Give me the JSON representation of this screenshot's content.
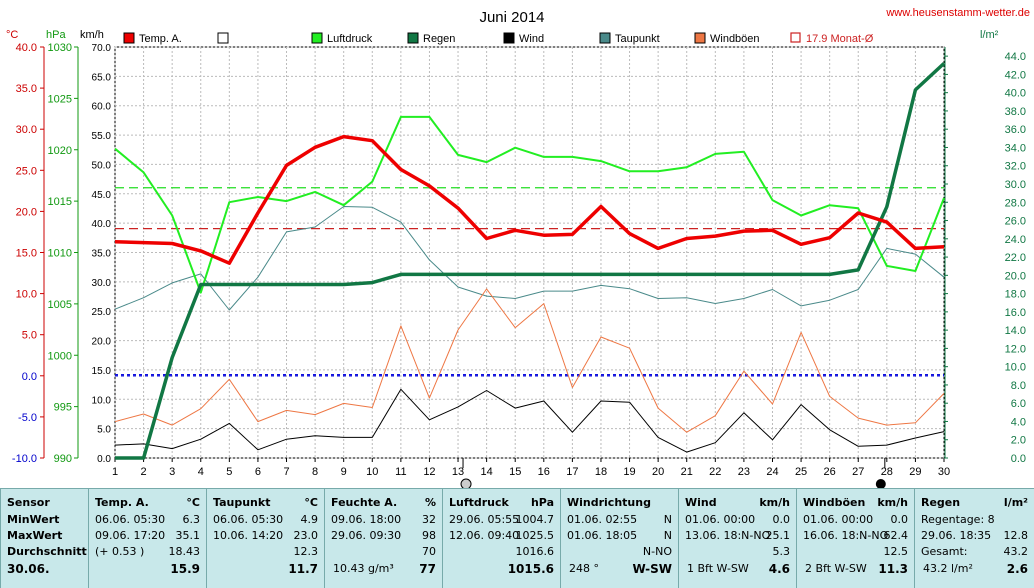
{
  "chart_data": {
    "type": "line",
    "title": "Juni 2014",
    "website": "www.heusenstamm-wetter.de",
    "x": [
      1,
      2,
      3,
      4,
      5,
      6,
      7,
      8,
      9,
      10,
      11,
      12,
      13,
      14,
      15,
      16,
      17,
      18,
      19,
      20,
      21,
      22,
      23,
      24,
      25,
      26,
      27,
      28,
      29,
      30
    ],
    "xlim": [
      1,
      30
    ],
    "axes": {
      "temp": {
        "unit": "°C",
        "min": -10,
        "max": 40,
        "ticks": [
          "40.0",
          "35.0",
          "30.0",
          "25.0",
          "20.0",
          "15.0",
          "10.0",
          "5.0",
          "0.0",
          "-5.0",
          "-10.0"
        ]
      },
      "pressure": {
        "unit": "hPa",
        "min": 990,
        "max": 1030,
        "ticks": [
          "1030",
          "1025",
          "1020",
          "1015",
          "1010",
          "1005",
          "1000",
          "995",
          "990"
        ]
      },
      "wind": {
        "unit": "km/h",
        "min": 0,
        "max": 70,
        "ticks": [
          "70.0",
          "65.0",
          "60.0",
          "55.0",
          "50.0",
          "45.0",
          "40.0",
          "35.0",
          "30.0",
          "25.0",
          "20.0",
          "15.0",
          "10.0",
          "5.0",
          "0.0"
        ]
      },
      "rain": {
        "unit": "l/m²",
        "min": 0,
        "max": 45,
        "ticks": [
          "44.0",
          "42.0",
          "40.0",
          "38.0",
          "36.0",
          "34.0",
          "32.0",
          "30.0",
          "28.0",
          "26.0",
          "24.0",
          "22.0",
          "20.0",
          "18.0",
          "16.0",
          "14.0",
          "12.0",
          "10.0",
          "8.0",
          "6.0",
          "4.0",
          "2.0",
          "0.0"
        ]
      }
    },
    "legend": [
      {
        "name": "Temp. A.",
        "color": "#ee0000",
        "style": "fill"
      },
      {
        "name": "",
        "color": "#ffffff",
        "style": "fill"
      },
      {
        "name": "Luftdruck",
        "color": "#22ee22",
        "style": "fill"
      },
      {
        "name": "Regen",
        "color": "#117744",
        "style": "fill"
      },
      {
        "name": "Wind",
        "color": "#000000",
        "style": "fill"
      },
      {
        "name": "Taupunkt",
        "color": "#4a8a8a",
        "style": "fill"
      },
      {
        "name": "Windböen",
        "color": "#ee7744",
        "style": "fill"
      },
      {
        "name": "17.9 Monat-Ø",
        "color": "#cc2222",
        "style": "outline"
      }
    ],
    "series": [
      {
        "name": "Temp. A.",
        "axis": "temp",
        "color": "#ee0000",
        "width": 3.5,
        "values": [
          16.3,
          16.2,
          16.1,
          15.2,
          13.7,
          19.8,
          25.6,
          27.8,
          29.1,
          28.6,
          25.1,
          23.1,
          20.4,
          16.7,
          17.7,
          17.1,
          17.2,
          20.6,
          17.3,
          15.5,
          16.7,
          17.0,
          17.6,
          17.7,
          16.0,
          16.8,
          19.8,
          18.7,
          15.5,
          15.7
        ]
      },
      {
        "name": "Luftdruck",
        "axis": "pressure",
        "color": "#22ee22",
        "width": 2,
        "values": [
          1020.1,
          1017.8,
          1013.6,
          1006.1,
          1014.9,
          1015.4,
          1015.0,
          1015.9,
          1014.6,
          1016.9,
          1023.2,
          1023.2,
          1019.5,
          1018.8,
          1020.2,
          1019.3,
          1019.3,
          1018.9,
          1017.9,
          1017.9,
          1018.3,
          1019.6,
          1019.8,
          1015.1,
          1013.6,
          1014.6,
          1014.3,
          1008.7,
          1008.2,
          1015.3
        ]
      },
      {
        "name": "Regen",
        "axis": "rain",
        "color": "#117744",
        "width": 3.5,
        "values": [
          0,
          0,
          11,
          19,
          19,
          19,
          19,
          19,
          19,
          19.2,
          20.1,
          20.1,
          20.1,
          20.1,
          20.1,
          20.1,
          20.1,
          20.1,
          20.1,
          20.1,
          20.1,
          20.1,
          20.1,
          20.1,
          20.1,
          20.1,
          20.6,
          27.5,
          40.3,
          43.2
        ]
      },
      {
        "name": "Wind",
        "axis": "wind",
        "color": "#000000",
        "width": 1,
        "values": [
          2.2,
          2.4,
          1.6,
          3.2,
          5.9,
          1.4,
          3.2,
          3.8,
          3.5,
          3.5,
          11.7,
          6.5,
          8.7,
          11.5,
          8.5,
          9.7,
          4.4,
          9.7,
          9.5,
          3.5,
          1.0,
          2.6,
          7.7,
          3.1,
          9.1,
          4.8,
          2.0,
          2.2,
          3.4,
          4.5
        ]
      },
      {
        "name": "Taupunkt",
        "axis": "temp",
        "color": "#4a8a8a",
        "width": 1,
        "values": [
          8.1,
          9.5,
          11.3,
          12.4,
          8.0,
          12.0,
          17.5,
          18.1,
          20.6,
          20.5,
          18.7,
          14.1,
          10.8,
          9.7,
          9.4,
          10.3,
          10.3,
          11.0,
          10.6,
          9.4,
          9.5,
          8.8,
          9.4,
          10.5,
          8.5,
          9.2,
          10.5,
          15.5,
          14.8,
          12.0
        ]
      },
      {
        "name": "Windböen",
        "axis": "wind",
        "color": "#ee7744",
        "width": 1,
        "values": [
          6.2,
          7.5,
          5.6,
          8.4,
          13.4,
          6.2,
          8.1,
          7.4,
          9.3,
          8.6,
          22.5,
          10.2,
          21.8,
          28.8,
          22.2,
          26.3,
          12.0,
          20.6,
          18.7,
          8.5,
          4.4,
          7.2,
          14.8,
          9.2,
          21.4,
          10.5,
          6.8,
          5.6,
          6.0,
          11.0
        ]
      }
    ],
    "reference_lines": [
      {
        "name": "17.9 Monat-Ø",
        "axis": "temp",
        "value": 17.9,
        "color": "#cc2222",
        "dash": "9,5"
      },
      {
        "name": "Luftdruck-Ø",
        "axis": "pressure",
        "value": 1016.3,
        "color": "#22dd22",
        "dash": "9,5"
      },
      {
        "name": "Wind-Ø",
        "axis": "wind",
        "value": 14.2,
        "color": "#1111dd",
        "dash": "3,3"
      },
      {
        "name": "0 °C",
        "axis": "temp",
        "value": 0,
        "color": "#1111dd",
        "dash": "3,3"
      }
    ],
    "markers": {
      "today_day": 13,
      "next_day": 28
    }
  },
  "table": {
    "sensor": {
      "header": "Sensor",
      "rows": [
        "MinWert",
        "MaxWert",
        "Durchschnitt",
        "30.06."
      ]
    },
    "temp": {
      "header": "Temp. A.",
      "unit": "°C",
      "min": [
        "06.06.  05:30",
        "6.3"
      ],
      "max": [
        "09.06.  17:20",
        "35.1"
      ],
      "avg": [
        "(+ 0.53 )",
        "18.43"
      ],
      "current": "15.9"
    },
    "dew": {
      "header": "Taupunkt",
      "unit": "°C",
      "min": [
        "06.06.  05:30",
        "4.9"
      ],
      "max": [
        "10.06.  14:20",
        "23.0"
      ],
      "avg": [
        "",
        "12.3"
      ],
      "current": "11.7"
    },
    "humidity": {
      "header": "Feuchte A.",
      "unit": "%",
      "min": [
        "09.06.  18:00",
        "32"
      ],
      "max": [
        "29.06.  09:30",
        "98"
      ],
      "avg": [
        "",
        "70"
      ],
      "current_abs": "10.43 g/m³",
      "current": "77"
    },
    "pressure": {
      "header": "Luftdruck",
      "unit": "hPa",
      "min": [
        "29.06.  05:55",
        "1004.7"
      ],
      "max": [
        "12.06.  09:40",
        "1025.5"
      ],
      "avg": [
        "",
        "1016.6"
      ],
      "current": "1015.6"
    },
    "winddir": {
      "header": "Windrichtung",
      "min": [
        "01.06.  02:55",
        "N"
      ],
      "max": [
        "01.06.  18:05",
        "N"
      ],
      "avg": [
        "",
        "N-NO"
      ],
      "current_deg": "248 °",
      "current": "W-SW"
    },
    "wind": {
      "header": "Wind",
      "unit": "km/h",
      "min": [
        "01.06.  00:00",
        "0.0"
      ],
      "max": [
        "13.06.  18:N-NO",
        "25.1"
      ],
      "avg": [
        "",
        "5.3"
      ],
      "current_bft": "1 Bft W-SW",
      "current": "4.6"
    },
    "gust": {
      "header": "Windböen",
      "unit": "km/h",
      "min": [
        "01.06.  00:00",
        "0.0"
      ],
      "max": [
        "16.06.  18:N-NO",
        "62.4"
      ],
      "avg": [
        "",
        "12.5"
      ],
      "current_bft": "2 Bft W-SW",
      "current": "11.3"
    },
    "rain": {
      "header": "Regen",
      "unit": "l/m²",
      "min": [
        "Regentage: 8",
        ""
      ],
      "max": [
        "29.06.  18:35",
        "12.8"
      ],
      "avg": [
        "Gesamt:",
        "43.2"
      ],
      "current_total": "43.2 l/m²",
      "current": "2.6"
    }
  }
}
